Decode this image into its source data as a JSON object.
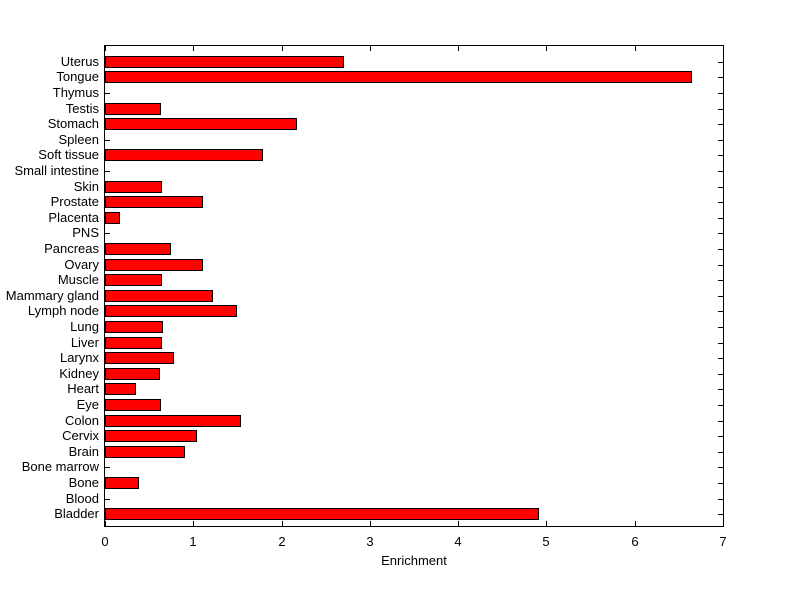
{
  "figure": {
    "background": "#ffffff"
  },
  "chart_data": {
    "type": "bar",
    "orientation": "horizontal",
    "title": "",
    "xlabel": "Enrichment",
    "ylabel": "",
    "xlim": [
      0,
      7
    ],
    "xticks": [
      0,
      1,
      2,
      3,
      4,
      5,
      6,
      7
    ],
    "grid": false,
    "legend_position": "none",
    "bar_color": "#ff0000",
    "bar_edge_color": "#000000",
    "axis_color": "#000000",
    "categories": [
      "Uterus",
      "Tongue",
      "Thymus",
      "Testis",
      "Stomach",
      "Spleen",
      "Soft tissue",
      "Small intestine",
      "Skin",
      "Prostate",
      "Placenta",
      "PNS",
      "Pancreas",
      "Ovary",
      "Muscle",
      "Mammary gland",
      "Lymph node",
      "Lung",
      "Liver",
      "Larynx",
      "Kidney",
      "Heart",
      "Eye",
      "Colon",
      "Cervix",
      "Brain",
      "Bone marrow",
      "Bone",
      "Blood",
      "Bladder"
    ],
    "values": [
      2.71,
      6.65,
      0,
      0.63,
      2.17,
      0,
      1.79,
      0,
      0.65,
      1.11,
      0.17,
      0,
      0.75,
      1.11,
      0.64,
      1.22,
      1.5,
      0.66,
      0.65,
      0.78,
      0.62,
      0.35,
      0.63,
      1.54,
      1.04,
      0.91,
      0,
      0.39,
      0,
      4.92
    ]
  }
}
